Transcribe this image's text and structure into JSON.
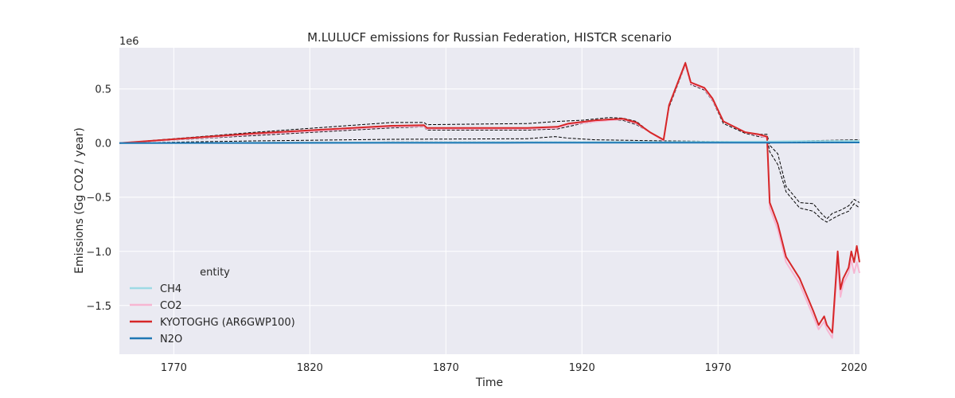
{
  "chart_data": {
    "type": "line",
    "title": "M.LULUCF emissions for Russian Federation, HISTCR scenario",
    "xlabel": "Time",
    "ylabel": "Emissions (Gg CO2 / year)",
    "y_offset_label": "1e6",
    "xlim": [
      1750,
      2022
    ],
    "ylim": [
      -1.95,
      0.88
    ],
    "y_scale_factor": 1000000,
    "xticks": [
      1770,
      1820,
      1870,
      1920,
      1970,
      2020
    ],
    "xtick_labels": [
      "1770",
      "1820",
      "1870",
      "1920",
      "1970",
      "2020"
    ],
    "yticks": [
      0.5,
      0.0,
      -0.5,
      -1.0,
      -1.5
    ],
    "ytick_labels": [
      "0.5",
      "0.0",
      "−0.5",
      "−1.0",
      "−1.5"
    ],
    "grid": true,
    "legend": {
      "title": "entity",
      "placement": "lower-left"
    },
    "colors": {
      "background": "#eaeaf2",
      "grid": "#ffffff",
      "band": "#000000"
    },
    "series": [
      {
        "name": "CH4",
        "color": "#9edae5",
        "points": [
          [
            1750,
            0.0
          ],
          [
            1800,
            0.003
          ],
          [
            1850,
            0.006
          ],
          [
            1900,
            0.008
          ],
          [
            1950,
            0.01
          ],
          [
            1970,
            0.012
          ],
          [
            1990,
            0.015
          ],
          [
            2000,
            0.018
          ],
          [
            2022,
            0.02
          ]
        ]
      },
      {
        "name": "CO2",
        "color": "#f7b6d2",
        "points": [
          [
            1750,
            0.0
          ],
          [
            1800,
            0.08
          ],
          [
            1850,
            0.15
          ],
          [
            1862,
            0.155
          ],
          [
            1863,
            0.13
          ],
          [
            1900,
            0.13
          ],
          [
            1911,
            0.14
          ],
          [
            1915,
            0.17
          ],
          [
            1925,
            0.2
          ],
          [
            1935,
            0.22
          ],
          [
            1940,
            0.18
          ],
          [
            1945,
            0.1
          ],
          [
            1950,
            0.02
          ],
          [
            1952,
            0.35
          ],
          [
            1958,
            0.73
          ],
          [
            1960,
            0.55
          ],
          [
            1965,
            0.5
          ],
          [
            1968,
            0.4
          ],
          [
            1972,
            0.2
          ],
          [
            1980,
            0.1
          ],
          [
            1985,
            0.07
          ],
          [
            1988,
            0.05
          ],
          [
            1989,
            -0.6
          ],
          [
            1992,
            -0.8
          ],
          [
            1995,
            -1.1
          ],
          [
            2000,
            -1.3
          ],
          [
            2005,
            -1.6
          ],
          [
            2007,
            -1.72
          ],
          [
            2009,
            -1.65
          ],
          [
            2010,
            -1.72
          ],
          [
            2012,
            -1.8
          ],
          [
            2014,
            -1.1
          ],
          [
            2015,
            -1.42
          ],
          [
            2016,
            -1.3
          ],
          [
            2018,
            -1.2
          ],
          [
            2019,
            -1.08
          ],
          [
            2020,
            -1.2
          ],
          [
            2021,
            -1.1
          ],
          [
            2022,
            -1.2
          ]
        ]
      },
      {
        "name": "KYOTOGHG (AR6GWP100)",
        "color": "#d62728",
        "points": [
          [
            1750,
            0.0
          ],
          [
            1800,
            0.09
          ],
          [
            1850,
            0.16
          ],
          [
            1862,
            0.165
          ],
          [
            1863,
            0.14
          ],
          [
            1900,
            0.14
          ],
          [
            1911,
            0.15
          ],
          [
            1915,
            0.18
          ],
          [
            1925,
            0.21
          ],
          [
            1935,
            0.225
          ],
          [
            1940,
            0.19
          ],
          [
            1945,
            0.1
          ],
          [
            1950,
            0.03
          ],
          [
            1952,
            0.35
          ],
          [
            1958,
            0.74
          ],
          [
            1960,
            0.56
          ],
          [
            1965,
            0.51
          ],
          [
            1968,
            0.41
          ],
          [
            1972,
            0.2
          ],
          [
            1980,
            0.1
          ],
          [
            1985,
            0.08
          ],
          [
            1988,
            0.06
          ],
          [
            1989,
            -0.55
          ],
          [
            1992,
            -0.75
          ],
          [
            1995,
            -1.05
          ],
          [
            2000,
            -1.25
          ],
          [
            2005,
            -1.55
          ],
          [
            2007,
            -1.68
          ],
          [
            2009,
            -1.6
          ],
          [
            2010,
            -1.68
          ],
          [
            2012,
            -1.75
          ],
          [
            2014,
            -1.0
          ],
          [
            2015,
            -1.35
          ],
          [
            2016,
            -1.25
          ],
          [
            2018,
            -1.15
          ],
          [
            2019,
            -1.0
          ],
          [
            2020,
            -1.1
          ],
          [
            2021,
            -0.95
          ],
          [
            2022,
            -1.1
          ]
        ]
      },
      {
        "name": "N2O",
        "color": "#1f77b4",
        "points": [
          [
            1750,
            0.0
          ],
          [
            1800,
            0.001
          ],
          [
            1850,
            0.002
          ],
          [
            1900,
            0.003
          ],
          [
            1950,
            0.003
          ],
          [
            1990,
            0.004
          ],
          [
            2022,
            0.005
          ]
        ]
      }
    ],
    "uncertainty_bands": [
      {
        "upper": [
          [
            1750,
            0.0
          ],
          [
            1800,
            0.1
          ],
          [
            1850,
            0.19
          ],
          [
            1862,
            0.19
          ],
          [
            1863,
            0.17
          ],
          [
            1900,
            0.18
          ],
          [
            1911,
            0.2
          ],
          [
            1920,
            0.21
          ],
          [
            1930,
            0.235
          ],
          [
            1935,
            0.23
          ],
          [
            1940,
            0.2
          ],
          [
            1945,
            0.1
          ],
          [
            1950,
            0.03
          ],
          [
            1952,
            0.35
          ],
          [
            1958,
            0.74
          ],
          [
            1960,
            0.56
          ],
          [
            1965,
            0.51
          ],
          [
            1968,
            0.41
          ],
          [
            1972,
            0.2
          ],
          [
            1980,
            0.1
          ],
          [
            1985,
            0.08
          ],
          [
            1988,
            0.08
          ],
          [
            1989,
            -0.02
          ],
          [
            1992,
            -0.1
          ],
          [
            1995,
            -0.4
          ],
          [
            2000,
            -0.55
          ],
          [
            2005,
            -0.56
          ],
          [
            2008,
            -0.65
          ],
          [
            2010,
            -0.7
          ],
          [
            2012,
            -0.65
          ],
          [
            2015,
            -0.62
          ],
          [
            2018,
            -0.58
          ],
          [
            2020,
            -0.52
          ],
          [
            2022,
            -0.55
          ]
        ]
      },
      {
        "upper": [
          [
            1750,
            0.0
          ],
          [
            1800,
            0.07
          ],
          [
            1850,
            0.14
          ],
          [
            1862,
            0.15
          ],
          [
            1863,
            0.12
          ],
          [
            1900,
            0.12
          ],
          [
            1911,
            0.13
          ],
          [
            1920,
            0.18
          ],
          [
            1930,
            0.215
          ],
          [
            1935,
            0.21
          ],
          [
            1940,
            0.17
          ],
          [
            1945,
            0.1
          ],
          [
            1950,
            0.02
          ],
          [
            1952,
            0.33
          ],
          [
            1958,
            0.72
          ],
          [
            1960,
            0.54
          ],
          [
            1965,
            0.49
          ],
          [
            1968,
            0.39
          ],
          [
            1972,
            0.18
          ],
          [
            1980,
            0.09
          ],
          [
            1985,
            0.06
          ],
          [
            1988,
            0.05
          ],
          [
            1989,
            -0.08
          ],
          [
            1992,
            -0.2
          ],
          [
            1995,
            -0.45
          ],
          [
            2000,
            -0.6
          ],
          [
            2005,
            -0.63
          ],
          [
            2008,
            -0.7
          ],
          [
            2010,
            -0.73
          ],
          [
            2012,
            -0.7
          ],
          [
            2015,
            -0.66
          ],
          [
            2018,
            -0.63
          ],
          [
            2020,
            -0.56
          ],
          [
            2022,
            -0.6
          ]
        ]
      },
      {
        "upper": [
          [
            1750,
            0.0
          ],
          [
            1800,
            0.02
          ],
          [
            1850,
            0.035
          ],
          [
            1900,
            0.04
          ],
          [
            1910,
            0.06
          ],
          [
            1915,
            0.045
          ],
          [
            1925,
            0.03
          ],
          [
            1950,
            0.02
          ],
          [
            1970,
            0.015
          ],
          [
            1990,
            0.015
          ],
          [
            2000,
            0.02
          ],
          [
            2022,
            0.03
          ]
        ]
      },
      {
        "upper": [
          [
            1750,
            0.0
          ],
          [
            1800,
            0.005
          ],
          [
            1850,
            0.01
          ],
          [
            1900,
            0.01
          ],
          [
            1950,
            0.012
          ],
          [
            1970,
            0.008
          ],
          [
            1990,
            0.01
          ],
          [
            2022,
            0.015
          ]
        ]
      }
    ]
  }
}
